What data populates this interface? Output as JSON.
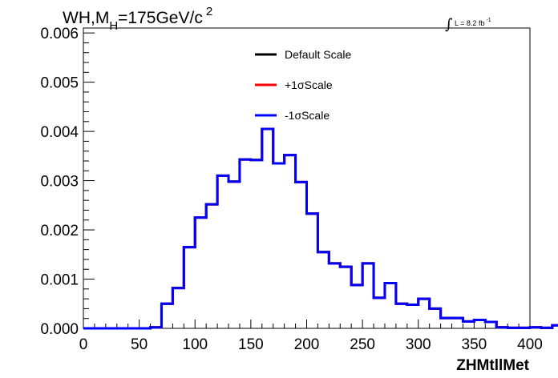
{
  "chart_data": {
    "type": "line",
    "style": "step-histogram",
    "title": {
      "main": "WH,M",
      "sub": "H",
      "rest": "=175GeV/c",
      "sup": "2"
    },
    "luminosity": {
      "symbol": "∫",
      "text": "L = 8.2 fb",
      "sup": "-1"
    },
    "xlabel": "ZHMtllMet",
    "ylabel": "",
    "xlim": [
      0,
      400
    ],
    "ylim": [
      0,
      0.0061
    ],
    "xticks": [
      0,
      50,
      100,
      150,
      200,
      250,
      300,
      350,
      400
    ],
    "xtick_labels": [
      "0",
      "50",
      "100",
      "150",
      "200",
      "250",
      "300",
      "350",
      "400"
    ],
    "yticks": [
      0,
      0.001,
      0.002,
      0.003,
      0.004,
      0.005,
      0.006
    ],
    "ytick_labels": [
      "0.000",
      "0.001",
      "0.002",
      "0.003",
      "0.004",
      "0.005",
      "0.006"
    ],
    "bin_width": 10,
    "bin_edges_start": 0,
    "legend_position": "top-center",
    "grid": false,
    "series": [
      {
        "name": "Default Scale",
        "color": "#000000",
        "values": [
          0,
          0,
          0,
          0,
          0,
          0,
          2e-05,
          0.0005,
          0.00082,
          0.00165,
          0.00225,
          0.00252,
          0.0031,
          0.00298,
          0.00343,
          0.00342,
          0.00405,
          0.00335,
          0.00352,
          0.00297,
          0.00233,
          0.00155,
          0.00132,
          0.00125,
          0.00088,
          0.00132,
          0.00062,
          0.00092,
          0.0005,
          0.00048,
          0.0006,
          0.0004,
          0.00021,
          0.00021,
          0.00014,
          0.00017,
          0.00013,
          2e-05,
          1e-05,
          1e-05,
          2e-05,
          1e-05,
          6e-05,
          3e-05,
          1e-05,
          0,
          0,
          0,
          0,
          0
        ]
      },
      {
        "name": "+1σScale",
        "color": "#ff0000",
        "values": [
          0,
          0,
          0,
          0,
          0,
          0,
          2e-05,
          0.0005,
          0.00082,
          0.00165,
          0.00225,
          0.00252,
          0.0031,
          0.00298,
          0.00343,
          0.00342,
          0.00405,
          0.00335,
          0.00352,
          0.00297,
          0.00233,
          0.00155,
          0.00132,
          0.00125,
          0.00088,
          0.00132,
          0.00062,
          0.00092,
          0.0005,
          0.00048,
          0.0006,
          0.0004,
          0.00021,
          0.00021,
          0.00014,
          0.00017,
          0.00013,
          2e-05,
          1e-05,
          1e-05,
          2e-05,
          1e-05,
          6e-05,
          3e-05,
          1e-05,
          0,
          0,
          0,
          0,
          0
        ]
      },
      {
        "name": "-1σScale",
        "color": "#0000ff",
        "values": [
          0,
          0,
          0,
          0,
          0,
          0,
          2e-05,
          0.0005,
          0.00082,
          0.00165,
          0.00225,
          0.00252,
          0.0031,
          0.00298,
          0.00343,
          0.00342,
          0.00405,
          0.00335,
          0.00352,
          0.00297,
          0.00233,
          0.00155,
          0.00132,
          0.00125,
          0.00088,
          0.00132,
          0.00062,
          0.00092,
          0.0005,
          0.00048,
          0.0006,
          0.0004,
          0.00021,
          0.00021,
          0.00014,
          0.00017,
          0.00013,
          2e-05,
          1e-05,
          1e-05,
          2e-05,
          1e-05,
          6e-05,
          3e-05,
          1e-05,
          0,
          0,
          0,
          0,
          0
        ]
      }
    ]
  }
}
